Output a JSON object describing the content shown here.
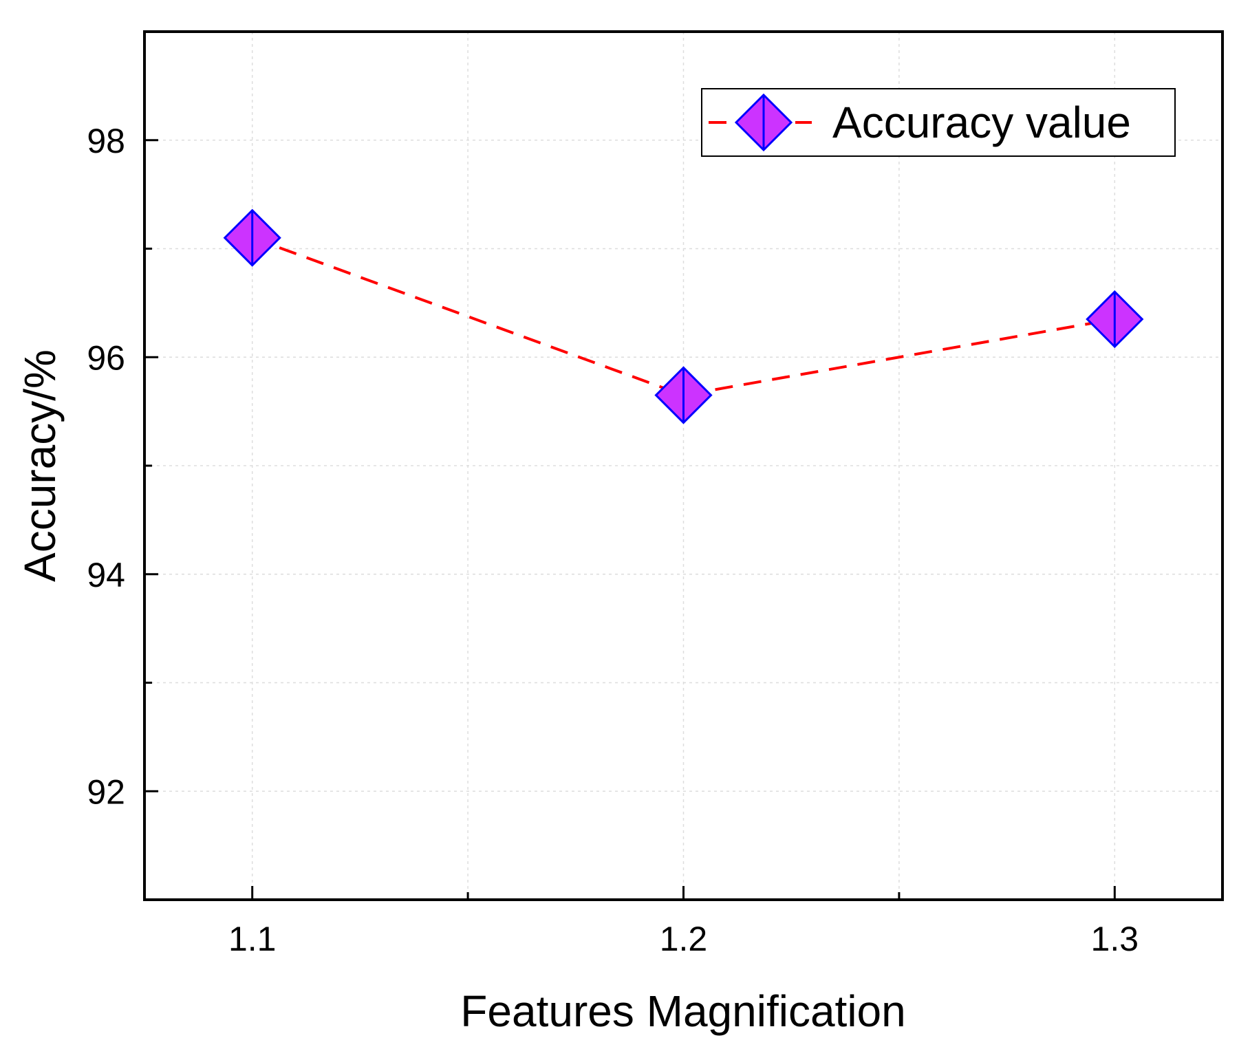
{
  "chart_data": {
    "type": "line",
    "title": "",
    "xlabel": "Features Magnification",
    "ylabel": "Accuracy/%",
    "x": [
      1.1,
      1.2,
      1.3
    ],
    "x_tick_labels": [
      "1.1",
      "1.2",
      "1.3"
    ],
    "y_tick_labels": [
      "92",
      "94",
      "96",
      "98"
    ],
    "xlim": [
      1.075,
      1.325
    ],
    "ylim": [
      91.0,
      99.0
    ],
    "grid": true,
    "legend_position": "top-right",
    "series": [
      {
        "name": "Accuracy value",
        "values": [
          97.1,
          95.65,
          96.35
        ],
        "line_color": "#ff0000",
        "line_style": "dashed",
        "marker": "diamond",
        "marker_fill": "#cc33ff",
        "marker_edge": "#0000ff"
      }
    ]
  }
}
